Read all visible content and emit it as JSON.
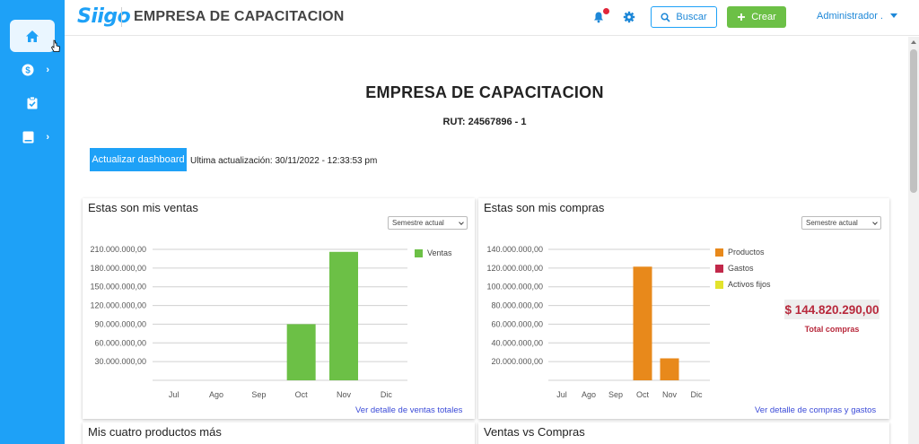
{
  "header": {
    "logo_text": "Siigo",
    "company_name": "EMPRESA DE CAPACITACION",
    "search_label": "Buscar",
    "create_label": "Crear",
    "user_label": "Administrador ."
  },
  "sidebar": {
    "items": [
      {
        "icon": "home-icon",
        "active": true
      },
      {
        "icon": "dollar-icon",
        "has_submenu": true
      },
      {
        "icon": "clipboard-check-icon"
      },
      {
        "icon": "book-icon",
        "has_submenu": true
      }
    ]
  },
  "main": {
    "title": "EMPRESA DE CAPACITACION",
    "rut": "RUT: 24567896 - 1",
    "refresh_button": "Actualizar dashboard",
    "last_update": "Ultima actualización: 30/11/2022 - 12:33:53 pm"
  },
  "cards": {
    "ventas": {
      "title": "Estas son mis ventas",
      "select": "Semestre actual",
      "link": "Ver detalle de ventas totales"
    },
    "compras": {
      "title": "Estas son mis compras",
      "select": "Semestre actual",
      "link": "Ver detalle de compras y gastos",
      "total_value": "$ 144.820.290,00",
      "total_label": "Total compras"
    },
    "productos": {
      "title": "Mis cuatro productos más"
    },
    "ventas_vs_compras": {
      "title": "Ventas vs Compras"
    }
  },
  "colors": {
    "brand_blue": "#1ea1f7",
    "ventas_green": "#6cc046",
    "productos_orange": "#e8891b",
    "gastos_crimson": "#c1284a",
    "activos_yellow": "#e3e32c",
    "total_red": "#b8293c"
  },
  "chart_data": [
    {
      "type": "bar",
      "title": "Estas son mis ventas",
      "categories": [
        "Jul",
        "Ago",
        "Sep",
        "Oct",
        "Nov",
        "Dic"
      ],
      "series": [
        {
          "name": "Ventas",
          "color": "#6cc046",
          "values": [
            0,
            0,
            0,
            90000000,
            206000000,
            0
          ]
        }
      ],
      "ylim": [
        0,
        210000000
      ],
      "yticks": [
        30000000,
        60000000,
        90000000,
        120000000,
        150000000,
        180000000,
        210000000
      ],
      "ytick_labels": [
        "30.000.000,00",
        "60.000.000,00",
        "90.000.000,00",
        "120.000.000,00",
        "150.000.000,00",
        "180.000.000,00",
        "210.000.000,00"
      ],
      "grid": true,
      "legend": "right"
    },
    {
      "type": "bar",
      "title": "Estas son mis compras",
      "categories": [
        "Jul",
        "Ago",
        "Sep",
        "Oct",
        "Nov",
        "Dic"
      ],
      "series": [
        {
          "name": "Productos",
          "color": "#e8891b",
          "values": [
            0,
            0,
            0,
            121500000,
            23500000,
            0
          ]
        },
        {
          "name": "Gastos",
          "color": "#c1284a",
          "values": [
            0,
            0,
            0,
            0,
            0,
            0
          ]
        },
        {
          "name": "Activos fijos",
          "color": "#e3e32c",
          "values": [
            0,
            0,
            0,
            0,
            0,
            0
          ]
        }
      ],
      "ylim": [
        0,
        140000000
      ],
      "yticks": [
        20000000,
        40000000,
        60000000,
        80000000,
        100000000,
        120000000,
        140000000
      ],
      "ytick_labels": [
        "20.000.000,00",
        "40.000.000,00",
        "60.000.000,00",
        "80.000.000,00",
        "100.000.000,00",
        "120.000.000,00",
        "140.000.000,00"
      ],
      "grid": true,
      "legend": "right"
    }
  ]
}
